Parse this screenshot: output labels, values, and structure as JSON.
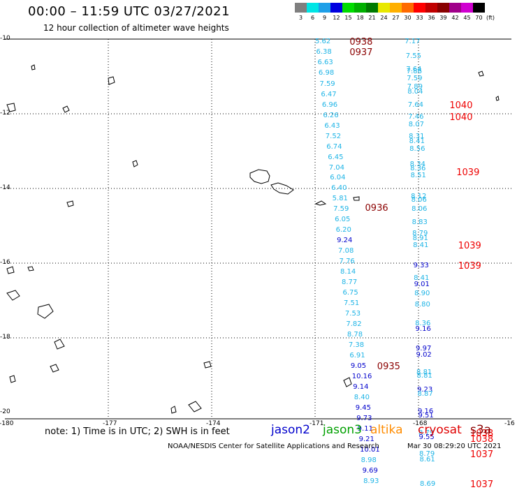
{
  "header": {
    "title": "00:00 – 11:59 UTC 03/27/2021",
    "subtitle": "12 hour collection of altimeter wave heights"
  },
  "legend": {
    "unit": "(ft)",
    "bins": [
      {
        "label": "3",
        "color": "#7f7f7f"
      },
      {
        "label": "6",
        "color": "#00e5e5"
      },
      {
        "label": "9",
        "color": "#1e9fe8"
      },
      {
        "label": "12",
        "color": "#0000e0"
      },
      {
        "label": "15",
        "color": "#00dd00"
      },
      {
        "label": "18",
        "color": "#00b000"
      },
      {
        "label": "21",
        "color": "#007a00"
      },
      {
        "label": "24",
        "color": "#e8e800"
      },
      {
        "label": "27",
        "color": "#ffb000"
      },
      {
        "label": "30",
        "color": "#ff6a00"
      },
      {
        "label": "33",
        "color": "#ff0000"
      },
      {
        "label": "36",
        "color": "#c00000"
      },
      {
        "label": "39",
        "color": "#880000"
      },
      {
        "label": "42",
        "color": "#a0008a"
      },
      {
        "label": "45",
        "color": "#d000d0"
      },
      {
        "label": "70",
        "color": "#000000"
      }
    ]
  },
  "axes": {
    "lat_labels": [
      "-10",
      "-12",
      "-14",
      "-16",
      "-18",
      "-20"
    ],
    "lon_labels": [
      "-180",
      "-177",
      "-174",
      "-171",
      "-168",
      "-16"
    ],
    "lat_range": [
      -20,
      -10
    ],
    "lon_range": [
      -180,
      -165
    ]
  },
  "footer": {
    "note": "note: 1) Time is in UTC; 2) SWH is in feet",
    "satellites": [
      {
        "name": "jason2",
        "color": "#0000cc"
      },
      {
        "name": "jason3",
        "color": "#00a000"
      },
      {
        "name": "altika",
        "color": "#ff8c00"
      },
      {
        "name": "cryosat",
        "color": "#e00000"
      },
      {
        "name": "s3a",
        "color": "#8b0000"
      }
    ],
    "credit": "NOAA/NESDIS Center for Satellite Applications and Research",
    "generated": "Mar 30 08:29:20 UTC 2021"
  },
  "colors": {
    "light_blue": "#1eb4e6",
    "dark_blue": "#0000cc",
    "red": "#ee0000",
    "dark_red": "#8b0000"
  },
  "track1": {
    "values": [
      {
        "v": "5.62",
        "lon": -171.0,
        "lat": -10.06,
        "c": "light_blue"
      },
      {
        "v": "6.38",
        "lon": -170.97,
        "lat": -10.34,
        "c": "light_blue"
      },
      {
        "v": "6.63",
        "lon": -170.93,
        "lat": -10.62,
        "c": "light_blue"
      },
      {
        "v": "6.98",
        "lon": -170.9,
        "lat": -10.9,
        "c": "light_blue"
      },
      {
        "v": "7.59",
        "lon": -170.87,
        "lat": -11.19,
        "c": "light_blue"
      },
      {
        "v": "6.47",
        "lon": -170.83,
        "lat": -11.47,
        "c": "light_blue"
      },
      {
        "v": "6.96",
        "lon": -170.8,
        "lat": -11.75,
        "c": "light_blue"
      },
      {
        "v": "6.26",
        "lon": -170.77,
        "lat": -12.03,
        "c": "light_blue"
      },
      {
        "v": "6.43",
        "lon": -170.73,
        "lat": -12.31,
        "c": "light_blue"
      },
      {
        "v": "7.52",
        "lon": -170.7,
        "lat": -12.59,
        "c": "light_blue"
      },
      {
        "v": "6.74",
        "lon": -170.67,
        "lat": -12.87,
        "c": "light_blue"
      },
      {
        "v": "6.45",
        "lon": -170.63,
        "lat": -13.15,
        "c": "light_blue"
      },
      {
        "v": "7.04",
        "lon": -170.6,
        "lat": -13.43,
        "c": "light_blue"
      },
      {
        "v": "6.04",
        "lon": -170.57,
        "lat": -13.71,
        "c": "light_blue"
      },
      {
        "v": "6.40",
        "lon": -170.53,
        "lat": -13.99,
        "c": "light_blue"
      },
      {
        "v": "5.81",
        "lon": -170.5,
        "lat": -14.27,
        "c": "light_blue"
      },
      {
        "v": "7.59",
        "lon": -170.47,
        "lat": -14.55,
        "c": "light_blue"
      },
      {
        "v": "6.05",
        "lon": -170.43,
        "lat": -14.83,
        "c": "light_blue"
      },
      {
        "v": "6.20",
        "lon": -170.4,
        "lat": -15.11,
        "c": "light_blue"
      },
      {
        "v": "9.24",
        "lon": -170.37,
        "lat": -15.39,
        "c": "dark_blue"
      },
      {
        "v": "7.08",
        "lon": -170.33,
        "lat": -15.67,
        "c": "light_blue"
      },
      {
        "v": "7.76",
        "lon": -170.3,
        "lat": -15.95,
        "c": "light_blue"
      },
      {
        "v": "8.14",
        "lon": -170.27,
        "lat": -16.23,
        "c": "light_blue"
      },
      {
        "v": "8.77",
        "lon": -170.23,
        "lat": -16.51,
        "c": "light_blue"
      },
      {
        "v": "6.75",
        "lon": -170.2,
        "lat": -16.79,
        "c": "light_blue"
      },
      {
        "v": "7.51",
        "lon": -170.17,
        "lat": -17.07,
        "c": "light_blue"
      },
      {
        "v": "7.53",
        "lon": -170.13,
        "lat": -17.35,
        "c": "light_blue"
      },
      {
        "v": "7.82",
        "lon": -170.1,
        "lat": -17.63,
        "c": "light_blue"
      },
      {
        "v": "8.78",
        "lon": -170.07,
        "lat": -17.91,
        "c": "light_blue"
      },
      {
        "v": "7.38",
        "lon": -170.03,
        "lat": -18.19,
        "c": "light_blue"
      },
      {
        "v": "6.91",
        "lon": -170.0,
        "lat": -18.47,
        "c": "light_blue"
      },
      {
        "v": "9.05",
        "lon": -169.97,
        "lat": -18.75,
        "c": "dark_blue"
      },
      {
        "v": "10.16",
        "lon": -169.93,
        "lat": -19.03,
        "c": "dark_blue"
      },
      {
        "v": "9.14",
        "lon": -169.9,
        "lat": -19.31,
        "c": "dark_blue"
      },
      {
        "v": "8.40",
        "lon": -169.87,
        "lat": -19.59,
        "c": "light_blue"
      },
      {
        "v": "9.45",
        "lon": -169.83,
        "lat": -19.87,
        "c": "dark_blue"
      },
      {
        "v": "9.73",
        "lon": -169.8,
        "lat": -20.15,
        "c": "dark_blue"
      },
      {
        "v": "9.11",
        "lon": -169.77,
        "lat": -20.43,
        "c": "dark_blue"
      },
      {
        "v": "9.21",
        "lon": -169.73,
        "lat": -20.71,
        "c": "dark_blue"
      },
      {
        "v": "10.01",
        "lon": -169.7,
        "lat": -20.99,
        "c": "dark_blue"
      },
      {
        "v": "8.98",
        "lon": -169.67,
        "lat": -21.27,
        "c": "light_blue"
      },
      {
        "v": "9.69",
        "lon": -169.63,
        "lat": -21.55,
        "c": "dark_blue"
      },
      {
        "v": "8.93",
        "lon": -169.6,
        "lat": -21.83,
        "c": "light_blue"
      }
    ],
    "times": [
      {
        "t": "0938",
        "lon": -170.0,
        "lat": -10.06,
        "c": "dark_red"
      },
      {
        "t": "0937",
        "lon": -170.0,
        "lat": -10.34,
        "c": "dark_red"
      },
      {
        "t": "0936",
        "lon": -169.55,
        "lat": -14.5,
        "c": "dark_red"
      },
      {
        "t": "0935",
        "lon": -169.2,
        "lat": -18.75,
        "c": "dark_red"
      }
    ]
  },
  "track2": {
    "values": [
      {
        "v": "7.17",
        "lon": -168.4,
        "lat": -10.06,
        "c": "light_blue"
      },
      {
        "v": "7.55",
        "lon": -168.37,
        "lat": -10.45,
        "c": "light_blue"
      },
      {
        "v": "7.64",
        "lon": -168.36,
        "lat": -10.8,
        "c": "light_blue"
      },
      {
        "v": "7.86",
        "lon": -168.35,
        "lat": -10.86,
        "c": "light_blue"
      },
      {
        "v": "7.59",
        "lon": -168.34,
        "lat": -11.05,
        "c": "light_blue"
      },
      {
        "v": "7.89",
        "lon": -168.33,
        "lat": -11.27,
        "c": "light_blue"
      },
      {
        "v": "8.04",
        "lon": -168.32,
        "lat": -11.4,
        "c": "light_blue"
      },
      {
        "v": "7.64",
        "lon": -168.31,
        "lat": -11.75,
        "c": "light_blue"
      },
      {
        "v": "7.46",
        "lon": -168.3,
        "lat": -12.08,
        "c": "light_blue"
      },
      {
        "v": "8.07",
        "lon": -168.29,
        "lat": -12.28,
        "c": "light_blue"
      },
      {
        "v": "8.31",
        "lon": -168.28,
        "lat": -12.6,
        "c": "light_blue"
      },
      {
        "v": "8.41",
        "lon": -168.27,
        "lat": -12.72,
        "c": "light_blue"
      },
      {
        "v": "8.56",
        "lon": -168.26,
        "lat": -12.93,
        "c": "light_blue"
      },
      {
        "v": "8.34",
        "lon": -168.25,
        "lat": -13.35,
        "c": "light_blue"
      },
      {
        "v": "8.36",
        "lon": -168.24,
        "lat": -13.46,
        "c": "light_blue"
      },
      {
        "v": "8.51",
        "lon": -168.23,
        "lat": -13.64,
        "c": "light_blue"
      },
      {
        "v": "8.12",
        "lon": -168.22,
        "lat": -14.2,
        "c": "light_blue"
      },
      {
        "v": "8.06",
        "lon": -168.21,
        "lat": -14.3,
        "c": "light_blue"
      },
      {
        "v": "8.06",
        "lon": -168.2,
        "lat": -14.55,
        "c": "light_blue"
      },
      {
        "v": "8.83",
        "lon": -168.19,
        "lat": -14.9,
        "c": "light_blue"
      },
      {
        "v": "8.79",
        "lon": -168.18,
        "lat": -15.2,
        "c": "light_blue"
      },
      {
        "v": "8.91",
        "lon": -168.17,
        "lat": -15.32,
        "c": "light_blue"
      },
      {
        "v": "8.41",
        "lon": -168.16,
        "lat": -15.52,
        "c": "light_blue"
      },
      {
        "v": "9.33",
        "lon": -168.15,
        "lat": -16.05,
        "c": "dark_blue"
      },
      {
        "v": "8.41",
        "lon": -168.14,
        "lat": -16.4,
        "c": "light_blue"
      },
      {
        "v": "9.01",
        "lon": -168.13,
        "lat": -16.56,
        "c": "dark_blue"
      },
      {
        "v": "8.90",
        "lon": -168.12,
        "lat": -16.8,
        "c": "light_blue"
      },
      {
        "v": "8.80",
        "lon": -168.11,
        "lat": -17.1,
        "c": "light_blue"
      },
      {
        "v": "8.36",
        "lon": -168.1,
        "lat": -17.6,
        "c": "light_blue"
      },
      {
        "v": "9.16",
        "lon": -168.09,
        "lat": -17.76,
        "c": "dark_blue"
      },
      {
        "v": "9.97",
        "lon": -168.08,
        "lat": -18.28,
        "c": "dark_blue"
      },
      {
        "v": "9.02",
        "lon": -168.07,
        "lat": -18.45,
        "c": "dark_blue"
      },
      {
        "v": "8.81",
        "lon": -168.06,
        "lat": -18.92,
        "c": "light_blue"
      },
      {
        "v": "8.81",
        "lon": -168.05,
        "lat": -19.0,
        "c": "light_blue"
      },
      {
        "v": "9.23",
        "lon": -168.04,
        "lat": -19.38,
        "c": "dark_blue"
      },
      {
        "v": "8.87",
        "lon": -168.03,
        "lat": -19.5,
        "c": "light_blue"
      },
      {
        "v": "9.16",
        "lon": -168.02,
        "lat": -19.96,
        "c": "dark_blue"
      },
      {
        "v": "9.51",
        "lon": -168.01,
        "lat": -20.08,
        "c": "dark_blue"
      },
      {
        "v": "8.79",
        "lon": -168.0,
        "lat": -20.55,
        "c": "light_blue"
      },
      {
        "v": "9.55",
        "lon": -167.99,
        "lat": -20.65,
        "c": "dark_blue"
      },
      {
        "v": "8.79",
        "lon": -167.98,
        "lat": -21.1,
        "c": "light_blue"
      },
      {
        "v": "8.61",
        "lon": -167.97,
        "lat": -21.25,
        "c": "light_blue"
      },
      {
        "v": "8.69",
        "lon": -167.96,
        "lat": -21.9,
        "c": "light_blue"
      }
    ],
    "times": [
      {
        "t": "1040",
        "lon": -167.1,
        "lat": -11.75,
        "c": "red"
      },
      {
        "t": "1040",
        "lon": -167.1,
        "lat": -12.08,
        "c": "red"
      },
      {
        "t": "1039",
        "lon": -166.9,
        "lat": -13.55,
        "c": "red"
      },
      {
        "t": "1039",
        "lon": -166.85,
        "lat": -15.52,
        "c": "red"
      },
      {
        "t": "1039",
        "lon": -166.85,
        "lat": -16.05,
        "c": "red"
      },
      {
        "t": "1038",
        "lon": -166.5,
        "lat": -20.55,
        "c": "red"
      },
      {
        "t": "1038",
        "lon": -166.5,
        "lat": -20.7,
        "c": "red"
      },
      {
        "t": "1037",
        "lon": -166.5,
        "lat": -21.1,
        "c": "red"
      },
      {
        "t": "1037",
        "lon": -166.5,
        "lat": -21.9,
        "c": "red"
      }
    ]
  }
}
